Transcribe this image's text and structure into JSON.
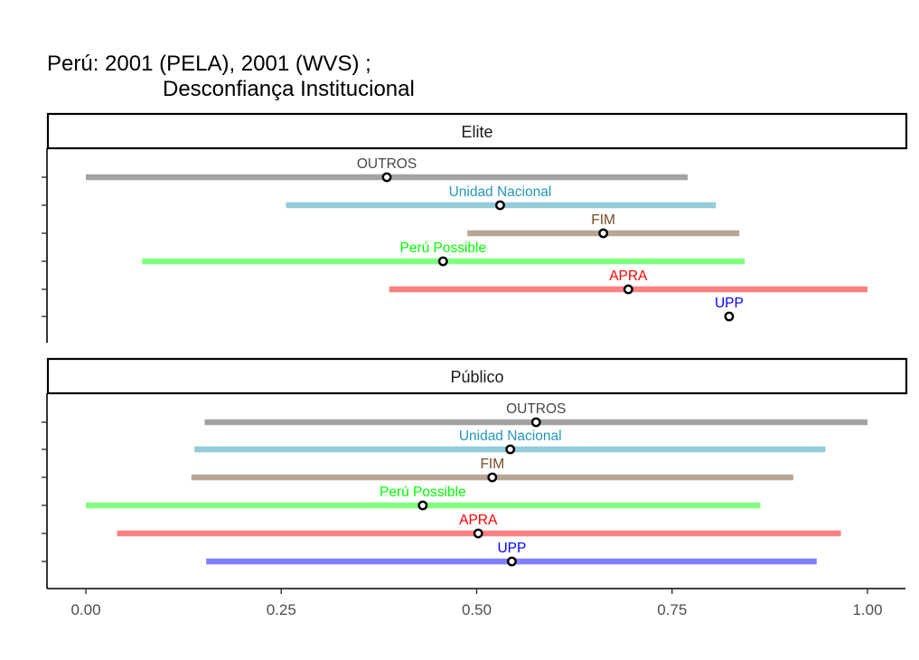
{
  "chart_data": {
    "type": "dot-range",
    "title_line1": "Perú: 2001 (PELA), 2001 (WVS) ;",
    "title_line2": "Desconfiança Institucional",
    "xlim": [
      0,
      1
    ],
    "x_ticks": [
      0,
      0.25,
      0.5,
      0.75,
      1
    ],
    "x_tick_labels": [
      "0.00",
      "0.25",
      "0.50",
      "0.75",
      "1.00"
    ],
    "grid": false,
    "colors": {
      "OUTROS": "#a3a3a3",
      "Unidad Nacional": "#92cbdb",
      "FIM": "#b8a594",
      "Perú Possible": "#80ff80",
      "APRA": "#ff8080",
      "UPP": "#8080ff"
    },
    "label_colors": {
      "OUTROS": "#474747",
      "Unidad Nacional": "#2596b7",
      "FIM": "#714b29",
      "Perú Possible": "#00ff00",
      "APRA": "#ff0000",
      "UPP": "#0000ff"
    },
    "panels": [
      {
        "name": "Elite",
        "items": [
          {
            "party": "OUTROS",
            "low": 0.0,
            "high": 0.77,
            "point": 0.385
          },
          {
            "party": "Unidad Nacional",
            "low": 0.256,
            "high": 0.806,
            "point": 0.53
          },
          {
            "party": "FIM",
            "low": 0.488,
            "high": 0.836,
            "point": 0.662
          },
          {
            "party": "Perú Possible",
            "low": 0.072,
            "high": 0.843,
            "point": 0.457
          },
          {
            "party": "APRA",
            "low": 0.388,
            "high": 1.0,
            "point": 0.694
          },
          {
            "party": "UPP",
            "low": null,
            "high": null,
            "point": 0.823
          }
        ]
      },
      {
        "name": "Público",
        "items": [
          {
            "party": "OUTROS",
            "low": 0.152,
            "high": 1.0,
            "point": 0.576
          },
          {
            "party": "Unidad Nacional",
            "low": 0.139,
            "high": 0.946,
            "point": 0.543
          },
          {
            "party": "FIM",
            "low": 0.135,
            "high": 0.905,
            "point": 0.52
          },
          {
            "party": "Perú Possible",
            "low": 0.0,
            "high": 0.863,
            "point": 0.431
          },
          {
            "party": "APRA",
            "low": 0.04,
            "high": 0.966,
            "point": 0.502
          },
          {
            "party": "UPP",
            "low": 0.154,
            "high": 0.935,
            "point": 0.545
          }
        ]
      }
    ]
  }
}
